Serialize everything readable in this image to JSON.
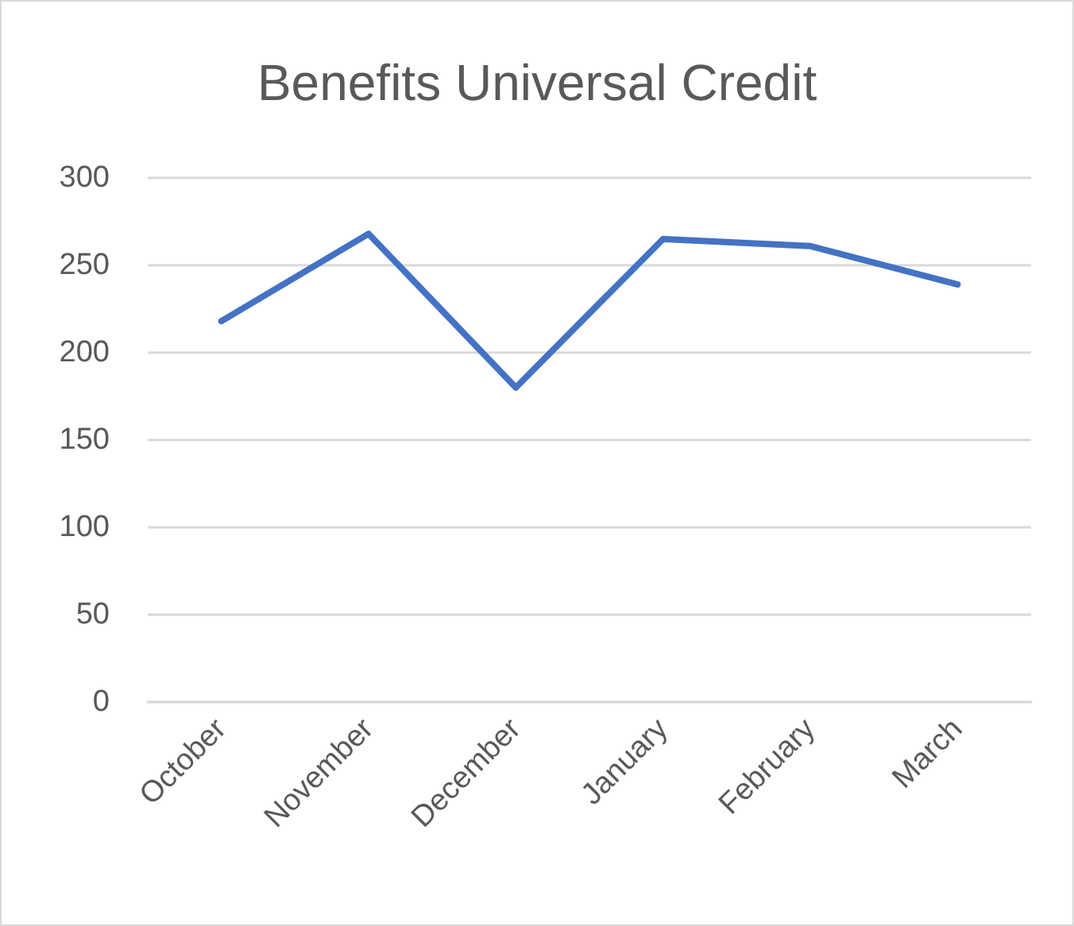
{
  "chart_data": {
    "type": "line",
    "title": "Benefits Universal Credit",
    "categories": [
      "October",
      "November",
      "December",
      "January",
      "February",
      "March"
    ],
    "series": [
      {
        "color": "#4472c4",
        "values": [
          218,
          268,
          180,
          265,
          261,
          239
        ]
      }
    ],
    "ylim": [
      0,
      300
    ],
    "yticks": [
      0,
      50,
      100,
      150,
      200,
      250,
      300
    ],
    "grid": "y",
    "marker": "none",
    "line_style": "solid"
  }
}
